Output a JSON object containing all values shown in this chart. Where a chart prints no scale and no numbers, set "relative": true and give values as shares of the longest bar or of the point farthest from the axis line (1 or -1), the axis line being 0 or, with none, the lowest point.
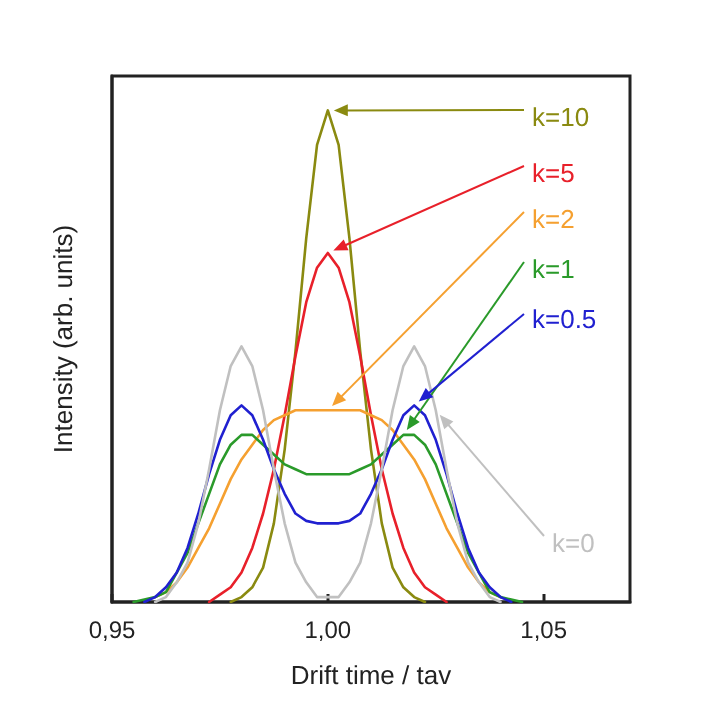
{
  "chart_data": {
    "type": "line",
    "xlabel": "Drift time / tav",
    "ylabel": "Intensity (arb. units)",
    "relative": true,
    "grid": false,
    "legend": false,
    "marker": "none",
    "line_style": "solid",
    "xlim": [
      0.95,
      1.07
    ],
    "xticks": [
      {
        "value": 0.95,
        "label": "0,95"
      },
      {
        "value": 1.0,
        "label": "1,00"
      },
      {
        "value": 1.05,
        "label": "1,05"
      }
    ],
    "x": [
      0.955,
      0.9575,
      0.96,
      0.9625,
      0.965,
      0.9675,
      0.97,
      0.9725,
      0.975,
      0.9775,
      0.98,
      0.9825,
      0.985,
      0.9875,
      0.99,
      0.9925,
      0.995,
      0.9975,
      1.0,
      1.0025,
      1.005,
      1.0075,
      1.01,
      1.0125,
      1.015,
      1.0175,
      1.02,
      1.0225,
      1.025,
      1.0275,
      1.03,
      1.0325,
      1.035,
      1.0375,
      1.04,
      1.0425,
      1.045
    ],
    "series": [
      {
        "name": "k=10",
        "color": "#8a8a10",
        "values": [
          null,
          null,
          null,
          null,
          null,
          null,
          null,
          null,
          null,
          0,
          0.01,
          0.03,
          0.07,
          0.16,
          0.31,
          0.51,
          0.74,
          0.93,
          1,
          0.93,
          0.74,
          0.51,
          0.31,
          0.16,
          0.07,
          0.03,
          0.01,
          0,
          null,
          null,
          null,
          null,
          null,
          null,
          null,
          null,
          null
        ]
      },
      {
        "name": "k=5",
        "color": "#e8202a",
        "values": [
          null,
          null,
          null,
          null,
          null,
          null,
          null,
          0,
          0.015,
          0.03,
          0.06,
          0.11,
          0.18,
          0.27,
          0.38,
          0.5,
          0.61,
          0.68,
          0.71,
          0.68,
          0.61,
          0.5,
          0.38,
          0.27,
          0.18,
          0.11,
          0.06,
          0.03,
          0.015,
          0,
          null,
          null,
          null,
          null,
          null,
          null,
          null
        ]
      },
      {
        "name": "k=2",
        "color": "#f5a030",
        "values": [
          null,
          null,
          0.01,
          0.02,
          0.04,
          0.07,
          0.11,
          0.15,
          0.2,
          0.25,
          0.29,
          0.32,
          0.35,
          0.37,
          0.38,
          0.39,
          0.39,
          0.39,
          0.39,
          0.39,
          0.39,
          0.39,
          0.38,
          0.37,
          0.35,
          0.32,
          0.29,
          0.25,
          0.2,
          0.15,
          0.11,
          0.07,
          0.04,
          0.02,
          0.01,
          null,
          null
        ]
      },
      {
        "name": "k=1",
        "color": "#2a9a2a",
        "values": [
          0,
          0.005,
          0.01,
          0.02,
          0.06,
          0.1,
          0.16,
          0.22,
          0.28,
          0.32,
          0.34,
          0.34,
          0.32,
          0.3,
          0.28,
          0.27,
          0.26,
          0.26,
          0.26,
          0.26,
          0.26,
          0.27,
          0.28,
          0.3,
          0.32,
          0.34,
          0.34,
          0.32,
          0.28,
          0.22,
          0.16,
          0.1,
          0.06,
          0.02,
          0.01,
          0.005,
          0
        ]
      },
      {
        "name": "k=0.5",
        "color": "#2020d0",
        "values": [
          null,
          0,
          0.01,
          0.03,
          0.06,
          0.11,
          0.18,
          0.26,
          0.33,
          0.38,
          0.4,
          0.38,
          0.33,
          0.27,
          0.22,
          0.18,
          0.165,
          0.16,
          0.16,
          0.16,
          0.165,
          0.18,
          0.22,
          0.27,
          0.33,
          0.38,
          0.4,
          0.38,
          0.33,
          0.26,
          0.18,
          0.11,
          0.06,
          0.03,
          0.01,
          0,
          null
        ]
      },
      {
        "name": "k=0",
        "color": "#c0c0c0",
        "values": [
          null,
          null,
          0,
          0.01,
          0.04,
          0.08,
          0.16,
          0.27,
          0.39,
          0.48,
          0.52,
          0.48,
          0.39,
          0.27,
          0.16,
          0.08,
          0.04,
          0.01,
          0.01,
          0.01,
          0.04,
          0.08,
          0.16,
          0.27,
          0.39,
          0.48,
          0.52,
          0.48,
          0.39,
          0.27,
          0.16,
          0.08,
          0.04,
          0.01,
          0,
          null,
          null
        ]
      }
    ]
  }
}
